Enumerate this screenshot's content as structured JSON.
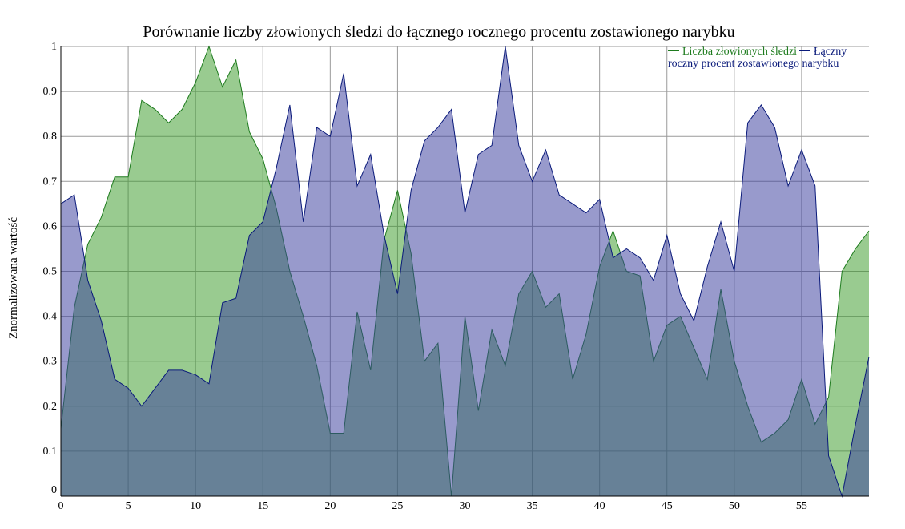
{
  "chart_data": {
    "type": "area",
    "title": "Porównanie liczby złowionych śledzi do łącznego rocznego procentu zostawionego narybku",
    "xlabel": "",
    "ylabel": "Znormalizowana wartość",
    "xlim": [
      0,
      60
    ],
    "ylim": [
      0,
      1
    ],
    "x_ticks": [
      "0",
      "5",
      "10",
      "15",
      "20",
      "25",
      "30",
      "35",
      "40",
      "45",
      "50",
      "55"
    ],
    "y_ticks": [
      "0",
      "0.1",
      "0.2",
      "0.3",
      "0.4",
      "0.5",
      "0.6",
      "0.7",
      "0.8",
      "0.9",
      "1"
    ],
    "grid": true,
    "legend_position": "top-right",
    "series": [
      {
        "name": "Liczba złowionych śledzi",
        "line_color": "#1e7b1e",
        "fill_color": "#3c9c2a",
        "values": [
          0.15,
          0.42,
          0.56,
          0.62,
          0.71,
          0.71,
          0.88,
          0.86,
          0.83,
          0.86,
          0.92,
          1.0,
          0.91,
          0.97,
          0.81,
          0.75,
          0.64,
          0.5,
          0.4,
          0.29,
          0.14,
          0.14,
          0.41,
          0.28,
          0.57,
          0.68,
          0.54,
          0.3,
          0.34,
          0.0,
          0.4,
          0.19,
          0.37,
          0.29,
          0.45,
          0.5,
          0.42,
          0.45,
          0.26,
          0.36,
          0.51,
          0.59,
          0.5,
          0.49,
          0.3,
          0.38,
          0.4,
          0.33,
          0.26,
          0.46,
          0.3,
          0.2,
          0.12,
          0.14,
          0.17,
          0.26,
          0.16,
          0.22,
          0.5,
          0.55,
          0.59
        ]
      },
      {
        "name": "Łączny roczny procent zostawionego narybku",
        "line_color": "#0a1a7a",
        "fill_color": "#3a3d9e",
        "values": [
          0.65,
          0.67,
          0.48,
          0.39,
          0.26,
          0.24,
          0.2,
          0.24,
          0.28,
          0.28,
          0.27,
          0.25,
          0.43,
          0.44,
          0.58,
          0.61,
          0.73,
          0.87,
          0.61,
          0.82,
          0.8,
          0.94,
          0.69,
          0.76,
          0.58,
          0.45,
          0.68,
          0.79,
          0.82,
          0.86,
          0.63,
          0.76,
          0.78,
          1.0,
          0.78,
          0.7,
          0.77,
          0.67,
          0.65,
          0.63,
          0.66,
          0.53,
          0.55,
          0.53,
          0.48,
          0.58,
          0.45,
          0.39,
          0.51,
          0.61,
          0.5,
          0.83,
          0.87,
          0.82,
          0.69,
          0.77,
          0.69,
          0.09,
          0.0,
          0.16,
          0.31
        ]
      }
    ]
  }
}
